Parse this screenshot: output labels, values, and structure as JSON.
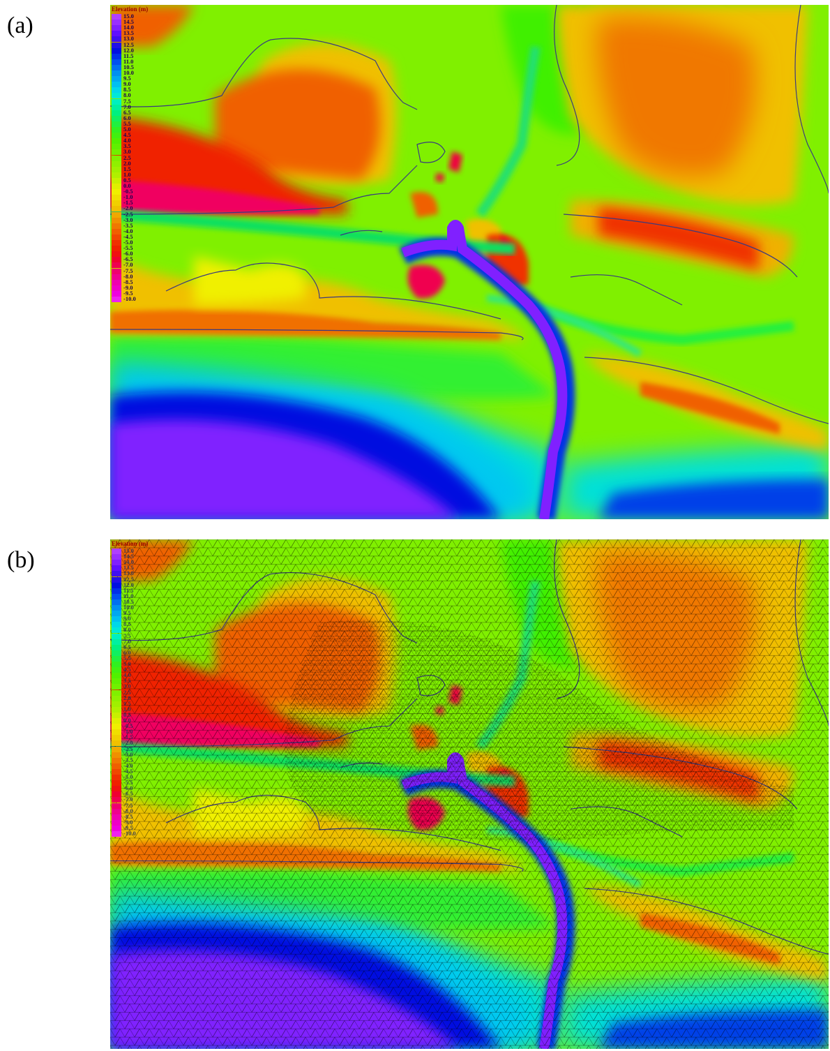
{
  "panels": [
    {
      "label": "(a)",
      "legend_title": "Elevation (m)",
      "mesh_overlay": false
    },
    {
      "label": "(b)",
      "legend_title": "Elevation (m)",
      "mesh_overlay": true
    }
  ],
  "legend": {
    "values": [
      "15.0",
      "14.5",
      "14.0",
      "13.5",
      "13.0",
      "12.5",
      "12.0",
      "11.5",
      "11.0",
      "10.5",
      "10.0",
      "9.5",
      "9.0",
      "8.5",
      "8.0",
      "7.5",
      "7.0",
      "6.5",
      "6.0",
      "5.5",
      "5.0",
      "4.5",
      "4.0",
      "3.5",
      "3.0",
      "2.5",
      "2.0",
      "1.5",
      "1.0",
      "0.5",
      "0.0",
      "-0.5",
      "-1.0",
      "-1.5",
      "-2.0",
      "-2.5",
      "-3.0",
      "-3.5",
      "-4.0",
      "-4.5",
      "-5.0",
      "-5.5",
      "-6.0",
      "-6.5",
      "-7.0",
      "-7.5",
      "-8.0",
      "-8.5",
      "-9.0",
      "-9.5",
      "-10.0"
    ],
    "colors": [
      "#b040ff",
      "#9a30ff",
      "#8020ff",
      "#6010ff",
      "#4010f0",
      "#2010e8",
      "#0010e0",
      "#0030e8",
      "#0050f0",
      "#0070f0",
      "#0090f0",
      "#00a8f0",
      "#00c0f0",
      "#00d8e8",
      "#00e8d8",
      "#00f0c0",
      "#00f0a0",
      "#00f080",
      "#10f060",
      "#20f040",
      "#30f020",
      "#40f010",
      "#50f000",
      "#60f000",
      "#70f000",
      "#80f000",
      "#90f000",
      "#a0f000",
      "#b0f000",
      "#c8f000",
      "#e0f000",
      "#f0f000",
      "#f0e000",
      "#f0d000",
      "#f0c000",
      "#f0a800",
      "#f09000",
      "#f07800",
      "#f06000",
      "#f04800",
      "#f03000",
      "#f02000",
      "#f01010",
      "#f00030",
      "#f00050",
      "#f00070",
      "#f00090",
      "#f000b0",
      "#f000c8",
      "#f000e0",
      "#f020f0"
    ]
  }
}
